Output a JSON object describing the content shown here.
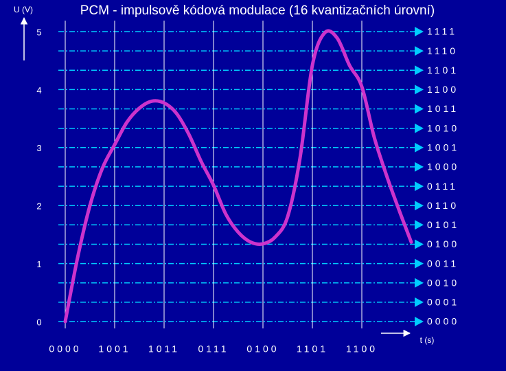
{
  "chart_data": {
    "type": "line",
    "title": "PCM - impulsově kódová modulace (16 kvantizačních úrovní)",
    "y_label": "U (V)",
    "x_label": "t (s)",
    "ylim": [
      0,
      5
    ],
    "yticks": [
      0,
      1,
      2,
      3,
      4,
      5
    ],
    "xlim": [
      0,
      7
    ],
    "levels": [
      {
        "value": 0,
        "label": "0000"
      },
      {
        "value": 0.333,
        "label": "0001"
      },
      {
        "value": 0.667,
        "label": "0010"
      },
      {
        "value": 1,
        "label": "0011"
      },
      {
        "value": 1.333,
        "label": "0100"
      },
      {
        "value": 1.667,
        "label": "0101"
      },
      {
        "value": 2,
        "label": "0110"
      },
      {
        "value": 2.333,
        "label": "0111"
      },
      {
        "value": 2.667,
        "label": "1000"
      },
      {
        "value": 3,
        "label": "1001"
      },
      {
        "value": 3.333,
        "label": "1010"
      },
      {
        "value": 3.667,
        "label": "1011"
      },
      {
        "value": 4,
        "label": "1100"
      },
      {
        "value": 4.333,
        "label": "1101"
      },
      {
        "value": 4.667,
        "label": "1110"
      },
      {
        "value": 5,
        "label": "1111"
      }
    ],
    "samples": {
      "x": [
        0,
        1,
        2,
        3,
        4,
        5,
        6
      ],
      "labels": [
        "0000",
        "1001",
        "1011",
        "0111",
        "0100",
        "1101",
        "1100"
      ]
    },
    "series": [
      {
        "name": "U",
        "color": "#cc33cc",
        "x": [
          0,
          0.25,
          0.5,
          0.75,
          1,
          1.25,
          1.5,
          1.75,
          2,
          2.25,
          2.5,
          2.75,
          3,
          3.25,
          3.5,
          3.75,
          4,
          4.25,
          4.5,
          4.75,
          5,
          5.25,
          5.5,
          5.75,
          6,
          6.25,
          6.5,
          6.75,
          7
        ],
        "values": [
          0,
          1.1,
          2.0,
          2.64,
          3.05,
          3.44,
          3.68,
          3.8,
          3.77,
          3.59,
          3.23,
          2.76,
          2.35,
          1.85,
          1.54,
          1.37,
          1.34,
          1.46,
          1.81,
          2.82,
          4.42,
          4.98,
          4.89,
          4.42,
          4.05,
          3.18,
          2.52,
          1.93,
          1.37
        ]
      }
    ]
  }
}
